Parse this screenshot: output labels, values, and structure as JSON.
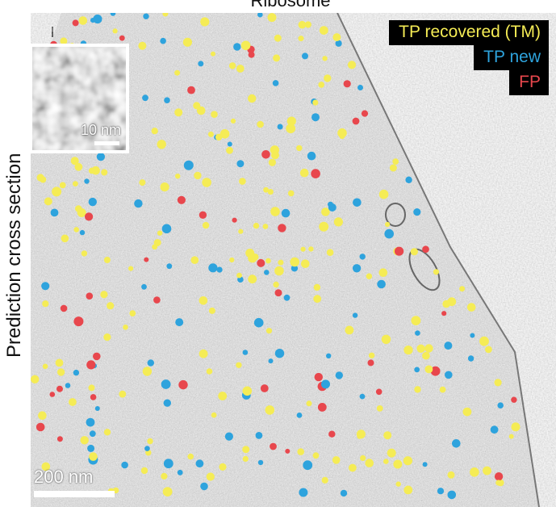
{
  "title": "Ribosome",
  "y_label": "Prediction cross section",
  "legend": [
    {
      "label": "TP recovered (TM)",
      "color": "#f5ec55"
    },
    {
      "label": "TP new",
      "color": "#2ea3dd"
    },
    {
      "label": "FP",
      "color": "#e8474d"
    }
  ],
  "inset_scale": "10 nm",
  "scale_bar": "200 nm",
  "colors": {
    "tp_recovered": "#f5ec55",
    "tp_new": "#2ea3dd",
    "fp": "#e8474d"
  }
}
